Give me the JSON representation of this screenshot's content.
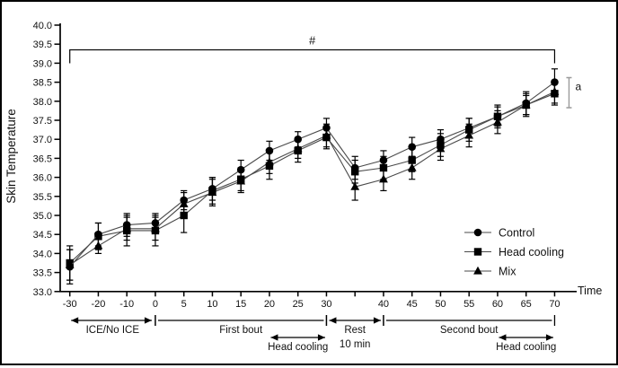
{
  "figure": {
    "title": "",
    "border_color": "#000000",
    "background": "#ffffff"
  },
  "chart_data": {
    "type": "line",
    "title": "",
    "xlabel": "Time",
    "ylabel": "Skin Temperature",
    "ylim": [
      33.0,
      40.0
    ],
    "ytick_step": 0.5,
    "grid": false,
    "legend_position": "right-middle",
    "x_tick_labels": [
      "-30",
      "-20",
      "-10",
      "0",
      "5",
      "10",
      "15",
      "20",
      "25",
      "30",
      "",
      "40",
      "45",
      "50",
      "55",
      "60",
      "65",
      "70"
    ],
    "colors": {
      "marker": "#000000",
      "line": "#4a4a4a",
      "error": "#000000",
      "axis": "#000000",
      "a_bracket": "#9a9a9a",
      "a_label": "#555555"
    },
    "series": [
      {
        "name": "Control",
        "marker": "circle",
        "values": [
          33.65,
          34.5,
          34.75,
          34.8,
          35.4,
          35.7,
          36.2,
          36.7,
          37.0,
          37.3,
          36.25,
          36.45,
          36.8,
          37.0,
          37.3,
          37.6,
          37.95,
          38.5
        ],
        "errors": [
          0.45,
          0.3,
          0.3,
          0.25,
          0.25,
          0.3,
          0.25,
          0.25,
          0.2,
          0.25,
          0.3,
          0.25,
          0.25,
          0.25,
          0.25,
          0.25,
          0.3,
          0.35
        ]
      },
      {
        "name": "Head cooling",
        "marker": "square",
        "values": [
          33.75,
          34.45,
          34.6,
          34.6,
          35.0,
          35.65,
          35.95,
          36.3,
          36.7,
          37.05,
          36.15,
          36.25,
          36.45,
          36.85,
          37.25,
          37.6,
          37.9,
          38.2
        ],
        "errors": [
          0.45,
          0.35,
          0.4,
          0.4,
          0.45,
          0.35,
          0.3,
          0.35,
          0.3,
          0.3,
          0.3,
          0.3,
          0.3,
          0.3,
          0.3,
          0.3,
          0.3,
          0.3
        ]
      },
      {
        "name": "Mix",
        "marker": "triangle",
        "values": [
          33.7,
          34.2,
          34.65,
          34.65,
          35.3,
          35.6,
          35.9,
          36.4,
          36.75,
          37.1,
          35.75,
          35.95,
          36.25,
          36.75,
          37.1,
          37.45,
          37.9,
          38.25
        ],
        "errors": [
          0.4,
          0.2,
          0.3,
          0.3,
          0.3,
          0.35,
          0.3,
          0.3,
          0.25,
          0.3,
          0.35,
          0.3,
          0.3,
          0.3,
          0.3,
          0.3,
          0.25,
          0.3
        ]
      }
    ],
    "annotations": {
      "hash": {
        "symbol": "#",
        "from_i": 0,
        "to_i": 17,
        "y_value": 39.35
      },
      "a_bracket": {
        "label": "a",
        "after_i": 17,
        "from_value": 38.62,
        "to_value": 37.83
      }
    },
    "timeline": [
      {
        "label": "ICE/No ICE",
        "label2": "",
        "from_i": 0,
        "to_i": 3,
        "row": 0,
        "arrows": "both",
        "bars": "right"
      },
      {
        "label": "First bout",
        "label2": "",
        "from_i": 3,
        "to_i": 9,
        "row": 0,
        "arrows": "none",
        "bars": "both"
      },
      {
        "label": "Rest",
        "label2": "10 min",
        "from_i": 9,
        "to_i": 11,
        "row": 0,
        "arrows": "both",
        "bars": "both"
      },
      {
        "label": "Second bout",
        "label2": "",
        "from_i": 11,
        "to_i": 17,
        "row": 0,
        "arrows": "none",
        "bars": "both"
      },
      {
        "label": "Head cooling",
        "label2": "",
        "from_i": 7,
        "to_i": 9,
        "row": 1,
        "arrows": "both",
        "bars": "none"
      },
      {
        "label": "Head cooling",
        "label2": "",
        "from_i": 15,
        "to_i": 17,
        "row": 1,
        "arrows": "both",
        "bars": "none"
      }
    ]
  }
}
